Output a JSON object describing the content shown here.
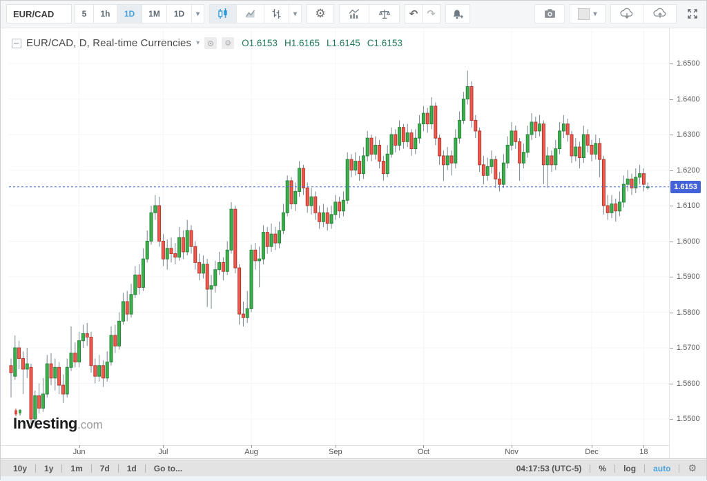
{
  "icons": {
    "caret": "▾",
    "gear": "⚙",
    "undo": "↶",
    "redo": "↷"
  },
  "toolbar": {
    "symbol": "EUR/CAD",
    "intervals": [
      "5",
      "1h",
      "1D",
      "1M",
      "1D"
    ],
    "active_interval": "1D"
  },
  "legend": {
    "title": "EUR/CAD, D, Real-time Currencies",
    "ohlc": [
      {
        "k": "O",
        "v": "1.6153"
      },
      {
        "k": "H",
        "v": "1.6165"
      },
      {
        "k": "L",
        "v": "1.6145"
      },
      {
        "k": "C",
        "v": "1.6153"
      }
    ]
  },
  "logo": {
    "brand": "Investing",
    "suffix": ".com"
  },
  "bottom_bar": {
    "ranges": [
      "10y",
      "1y",
      "1m",
      "7d",
      "1d"
    ],
    "goto_label": "Go to...",
    "time_label": "04:17:53 (UTC-5)",
    "percent_label": "%",
    "log_label": "log",
    "auto_label": "auto"
  },
  "chart_data": {
    "type": "candlestick",
    "title": "EUR/CAD Daily",
    "last_price": 1.6153,
    "last_price_label": "1.6153",
    "price_axis": {
      "min": 1.55,
      "max": 1.65,
      "step": 0.01
    },
    "time_axis": {
      "ticks": [
        {
          "label": "Jun",
          "index": 17
        },
        {
          "label": "Jul",
          "index": 38
        },
        {
          "label": "Aug",
          "index": 60
        },
        {
          "label": "Sep",
          "index": 81
        },
        {
          "label": "Oct",
          "index": 103
        },
        {
          "label": "Nov",
          "index": 125
        },
        {
          "label": "Dec",
          "index": 145
        },
        {
          "label": "18",
          "index": 158
        }
      ]
    },
    "grid": true,
    "colors": {
      "up_fill": "#3cb04a",
      "up_border": "#27823b",
      "down_fill": "#f1584e",
      "down_border": "#b03a2e",
      "wick": "#75868f",
      "price_line": "#4463d8",
      "tag_bg": "#4463d8",
      "grid": "#f3f5f7"
    },
    "candles": [
      [
        1.565,
        1.567,
        1.556,
        1.563
      ],
      [
        1.562,
        1.5735,
        1.561,
        1.57
      ],
      [
        1.57,
        1.572,
        1.564,
        1.567
      ],
      [
        1.567,
        1.569,
        1.557,
        1.564
      ],
      [
        1.564,
        1.57,
        1.5615,
        1.5655
      ],
      [
        1.5645,
        1.5655,
        1.5485,
        1.55
      ],
      [
        1.55,
        1.558,
        1.5475,
        1.5565
      ],
      [
        1.5565,
        1.56,
        1.5515,
        1.553
      ],
      [
        1.553,
        1.5615,
        1.552,
        1.557
      ],
      [
        1.557,
        1.568,
        1.556,
        1.5655
      ],
      [
        1.5655,
        1.5685,
        1.5595,
        1.5615
      ],
      [
        1.5615,
        1.567,
        1.558,
        1.5645
      ],
      [
        1.5645,
        1.566,
        1.557,
        1.5595
      ],
      [
        1.5595,
        1.5625,
        1.5545,
        1.557
      ],
      [
        1.557,
        1.567,
        1.556,
        1.5645
      ],
      [
        1.5645,
        1.576,
        1.5635,
        1.5685
      ],
      [
        1.5685,
        1.5715,
        1.5645,
        1.566
      ],
      [
        1.566,
        1.5745,
        1.5645,
        1.572
      ],
      [
        1.572,
        1.5765,
        1.57,
        1.574
      ],
      [
        1.574,
        1.577,
        1.5705,
        1.573
      ],
      [
        1.573,
        1.5745,
        1.563,
        1.565
      ],
      [
        1.565,
        1.567,
        1.56,
        1.562
      ],
      [
        1.562,
        1.568,
        1.5605,
        1.565
      ],
      [
        1.565,
        1.5665,
        1.559,
        1.5615
      ],
      [
        1.5615,
        1.569,
        1.5605,
        1.566
      ],
      [
        1.566,
        1.576,
        1.565,
        1.5735
      ],
      [
        1.5735,
        1.5765,
        1.5685,
        1.5705
      ],
      [
        1.5705,
        1.58,
        1.5695,
        1.5775
      ],
      [
        1.5775,
        1.5855,
        1.5765,
        1.583
      ],
      [
        1.583,
        1.586,
        1.5775,
        1.5795
      ],
      [
        1.5795,
        1.588,
        1.5785,
        1.585
      ],
      [
        1.585,
        1.593,
        1.584,
        1.5905
      ],
      [
        1.5905,
        1.5935,
        1.585,
        1.587
      ],
      [
        1.587,
        1.598,
        1.586,
        1.595
      ],
      [
        1.595,
        1.603,
        1.594,
        1.6
      ],
      [
        1.6,
        1.61,
        1.599,
        1.608
      ],
      [
        1.608,
        1.613,
        1.606,
        1.61
      ],
      [
        1.61,
        1.6125,
        1.5985,
        1.6
      ],
      [
        1.6,
        1.602,
        1.593,
        1.595
      ],
      [
        1.595,
        1.6005,
        1.592,
        1.598
      ],
      [
        1.598,
        1.601,
        1.594,
        1.5965
      ],
      [
        1.5965,
        1.5995,
        1.5935,
        1.5955
      ],
      [
        1.5955,
        1.604,
        1.5945,
        1.601
      ],
      [
        1.601,
        1.603,
        1.595,
        1.597
      ],
      [
        1.597,
        1.606,
        1.596,
        1.603
      ],
      [
        1.603,
        1.6045,
        1.5965,
        1.5985
      ],
      [
        1.5985,
        1.6,
        1.592,
        1.594
      ],
      [
        1.594,
        1.5965,
        1.589,
        1.591
      ],
      [
        1.591,
        1.596,
        1.5895,
        1.5935
      ],
      [
        1.5935,
        1.595,
        1.5815,
        1.5865
      ],
      [
        1.5865,
        1.5905,
        1.581,
        1.5875
      ],
      [
        1.5875,
        1.5945,
        1.5855,
        1.592
      ],
      [
        1.592,
        1.597,
        1.5905,
        1.594
      ],
      [
        1.594,
        1.5955,
        1.589,
        1.5915
      ],
      [
        1.5915,
        1.6,
        1.5905,
        1.5975
      ],
      [
        1.5975,
        1.611,
        1.5965,
        1.609
      ],
      [
        1.609,
        1.61,
        1.591,
        1.5925
      ],
      [
        1.5925,
        1.5935,
        1.5765,
        1.5795
      ],
      [
        1.5795,
        1.583,
        1.576,
        1.5785
      ],
      [
        1.5785,
        1.586,
        1.577,
        1.581
      ],
      [
        1.581,
        1.599,
        1.58,
        1.5975
      ],
      [
        1.5975,
        1.5995,
        1.592,
        1.5945
      ],
      [
        1.5945,
        1.5985,
        1.587,
        1.595
      ],
      [
        1.595,
        1.6045,
        1.5935,
        1.6025
      ],
      [
        1.6025,
        1.604,
        1.5965,
        1.5985
      ],
      [
        1.5985,
        1.605,
        1.597,
        1.602
      ],
      [
        1.602,
        1.604,
        1.5975,
        1.5995
      ],
      [
        1.5995,
        1.6055,
        1.598,
        1.603
      ],
      [
        1.603,
        1.6105,
        1.602,
        1.608
      ],
      [
        1.608,
        1.6185,
        1.607,
        1.617
      ],
      [
        1.617,
        1.618,
        1.609,
        1.6105
      ],
      [
        1.6105,
        1.6165,
        1.6085,
        1.614
      ],
      [
        1.614,
        1.6225,
        1.6125,
        1.6205
      ],
      [
        1.6205,
        1.6215,
        1.613,
        1.615
      ],
      [
        1.615,
        1.6165,
        1.608,
        1.61
      ],
      [
        1.61,
        1.615,
        1.6075,
        1.6125
      ],
      [
        1.6125,
        1.614,
        1.606,
        1.608
      ],
      [
        1.608,
        1.61,
        1.6035,
        1.6055
      ],
      [
        1.6055,
        1.6105,
        1.604,
        1.608
      ],
      [
        1.608,
        1.6095,
        1.603,
        1.605
      ],
      [
        1.605,
        1.61,
        1.6035,
        1.6075
      ],
      [
        1.6075,
        1.613,
        1.606,
        1.611
      ],
      [
        1.611,
        1.6125,
        1.6065,
        1.6085
      ],
      [
        1.6085,
        1.614,
        1.607,
        1.6115
      ],
      [
        1.6115,
        1.625,
        1.6105,
        1.623
      ],
      [
        1.623,
        1.6245,
        1.618,
        1.62
      ],
      [
        1.62,
        1.625,
        1.6185,
        1.6225
      ],
      [
        1.6225,
        1.624,
        1.617,
        1.619
      ],
      [
        1.619,
        1.6265,
        1.6175,
        1.624
      ],
      [
        1.624,
        1.631,
        1.6225,
        1.629
      ],
      [
        1.629,
        1.63,
        1.6225,
        1.6245
      ],
      [
        1.6245,
        1.6295,
        1.623,
        1.627
      ],
      [
        1.627,
        1.6285,
        1.6205,
        1.6225
      ],
      [
        1.6225,
        1.624,
        1.617,
        1.619
      ],
      [
        1.619,
        1.627,
        1.618,
        1.6245
      ],
      [
        1.6245,
        1.632,
        1.6235,
        1.63
      ],
      [
        1.63,
        1.6315,
        1.625,
        1.627
      ],
      [
        1.627,
        1.634,
        1.6255,
        1.632
      ],
      [
        1.632,
        1.633,
        1.626,
        1.628
      ],
      [
        1.628,
        1.633,
        1.6265,
        1.6305
      ],
      [
        1.6305,
        1.6315,
        1.624,
        1.626
      ],
      [
        1.626,
        1.6315,
        1.6245,
        1.629
      ],
      [
        1.629,
        1.6355,
        1.6275,
        1.633
      ],
      [
        1.633,
        1.638,
        1.631,
        1.636
      ],
      [
        1.636,
        1.6375,
        1.6305,
        1.633
      ],
      [
        1.633,
        1.6405,
        1.6315,
        1.638
      ],
      [
        1.638,
        1.639,
        1.627,
        1.629
      ],
      [
        1.629,
        1.63,
        1.6215,
        1.624
      ],
      [
        1.624,
        1.6255,
        1.617,
        1.6215
      ],
      [
        1.6215,
        1.6265,
        1.62,
        1.624
      ],
      [
        1.624,
        1.6255,
        1.6185,
        1.622
      ],
      [
        1.622,
        1.6315,
        1.6205,
        1.629
      ],
      [
        1.629,
        1.6365,
        1.6275,
        1.634
      ],
      [
        1.634,
        1.642,
        1.633,
        1.64
      ],
      [
        1.64,
        1.648,
        1.6385,
        1.6435
      ],
      [
        1.6435,
        1.645,
        1.632,
        1.634
      ],
      [
        1.634,
        1.6355,
        1.629,
        1.631
      ],
      [
        1.631,
        1.632,
        1.6195,
        1.6215
      ],
      [
        1.6215,
        1.624,
        1.616,
        1.6185
      ],
      [
        1.6185,
        1.6235,
        1.617,
        1.621
      ],
      [
        1.621,
        1.6255,
        1.619,
        1.623
      ],
      [
        1.623,
        1.624,
        1.615,
        1.6175
      ],
      [
        1.6175,
        1.6195,
        1.614,
        1.616
      ],
      [
        1.616,
        1.6245,
        1.615,
        1.622
      ],
      [
        1.622,
        1.6295,
        1.6205,
        1.627
      ],
      [
        1.627,
        1.6335,
        1.6255,
        1.631
      ],
      [
        1.631,
        1.6325,
        1.626,
        1.628
      ],
      [
        1.628,
        1.629,
        1.617,
        1.622
      ],
      [
        1.622,
        1.6275,
        1.6205,
        1.625
      ],
      [
        1.625,
        1.6325,
        1.6235,
        1.63
      ],
      [
        1.63,
        1.636,
        1.6285,
        1.6335
      ],
      [
        1.6335,
        1.635,
        1.629,
        1.631
      ],
      [
        1.631,
        1.6355,
        1.6295,
        1.633
      ],
      [
        1.633,
        1.634,
        1.616,
        1.6215
      ],
      [
        1.6215,
        1.6265,
        1.615,
        1.624
      ],
      [
        1.624,
        1.6255,
        1.6195,
        1.6215
      ],
      [
        1.6215,
        1.6285,
        1.62,
        1.626
      ],
      [
        1.626,
        1.6335,
        1.6245,
        1.631
      ],
      [
        1.631,
        1.6355,
        1.629,
        1.633
      ],
      [
        1.633,
        1.6345,
        1.628,
        1.63
      ],
      [
        1.63,
        1.631,
        1.622,
        1.624
      ],
      [
        1.624,
        1.629,
        1.6225,
        1.6265
      ],
      [
        1.6265,
        1.628,
        1.6205,
        1.6235
      ],
      [
        1.6235,
        1.6325,
        1.622,
        1.63
      ],
      [
        1.63,
        1.6315,
        1.625,
        1.627
      ],
      [
        1.627,
        1.6285,
        1.6225,
        1.6245
      ],
      [
        1.6245,
        1.63,
        1.623,
        1.6275
      ],
      [
        1.6275,
        1.629,
        1.618,
        1.623
      ],
      [
        1.623,
        1.624,
        1.6075,
        1.61
      ],
      [
        1.61,
        1.613,
        1.606,
        1.608
      ],
      [
        1.608,
        1.613,
        1.6065,
        1.6105
      ],
      [
        1.6105,
        1.612,
        1.6055,
        1.6085
      ],
      [
        1.6085,
        1.614,
        1.607,
        1.611
      ],
      [
        1.611,
        1.6185,
        1.6095,
        1.616
      ],
      [
        1.616,
        1.62,
        1.614,
        1.6175
      ],
      [
        1.6175,
        1.619,
        1.613,
        1.615
      ],
      [
        1.615,
        1.6205,
        1.6135,
        1.618
      ],
      [
        1.618,
        1.6215,
        1.616,
        1.619
      ],
      [
        1.619,
        1.6205,
        1.614,
        1.616
      ],
      [
        1.6153,
        1.6165,
        1.6145,
        1.6153
      ]
    ]
  }
}
